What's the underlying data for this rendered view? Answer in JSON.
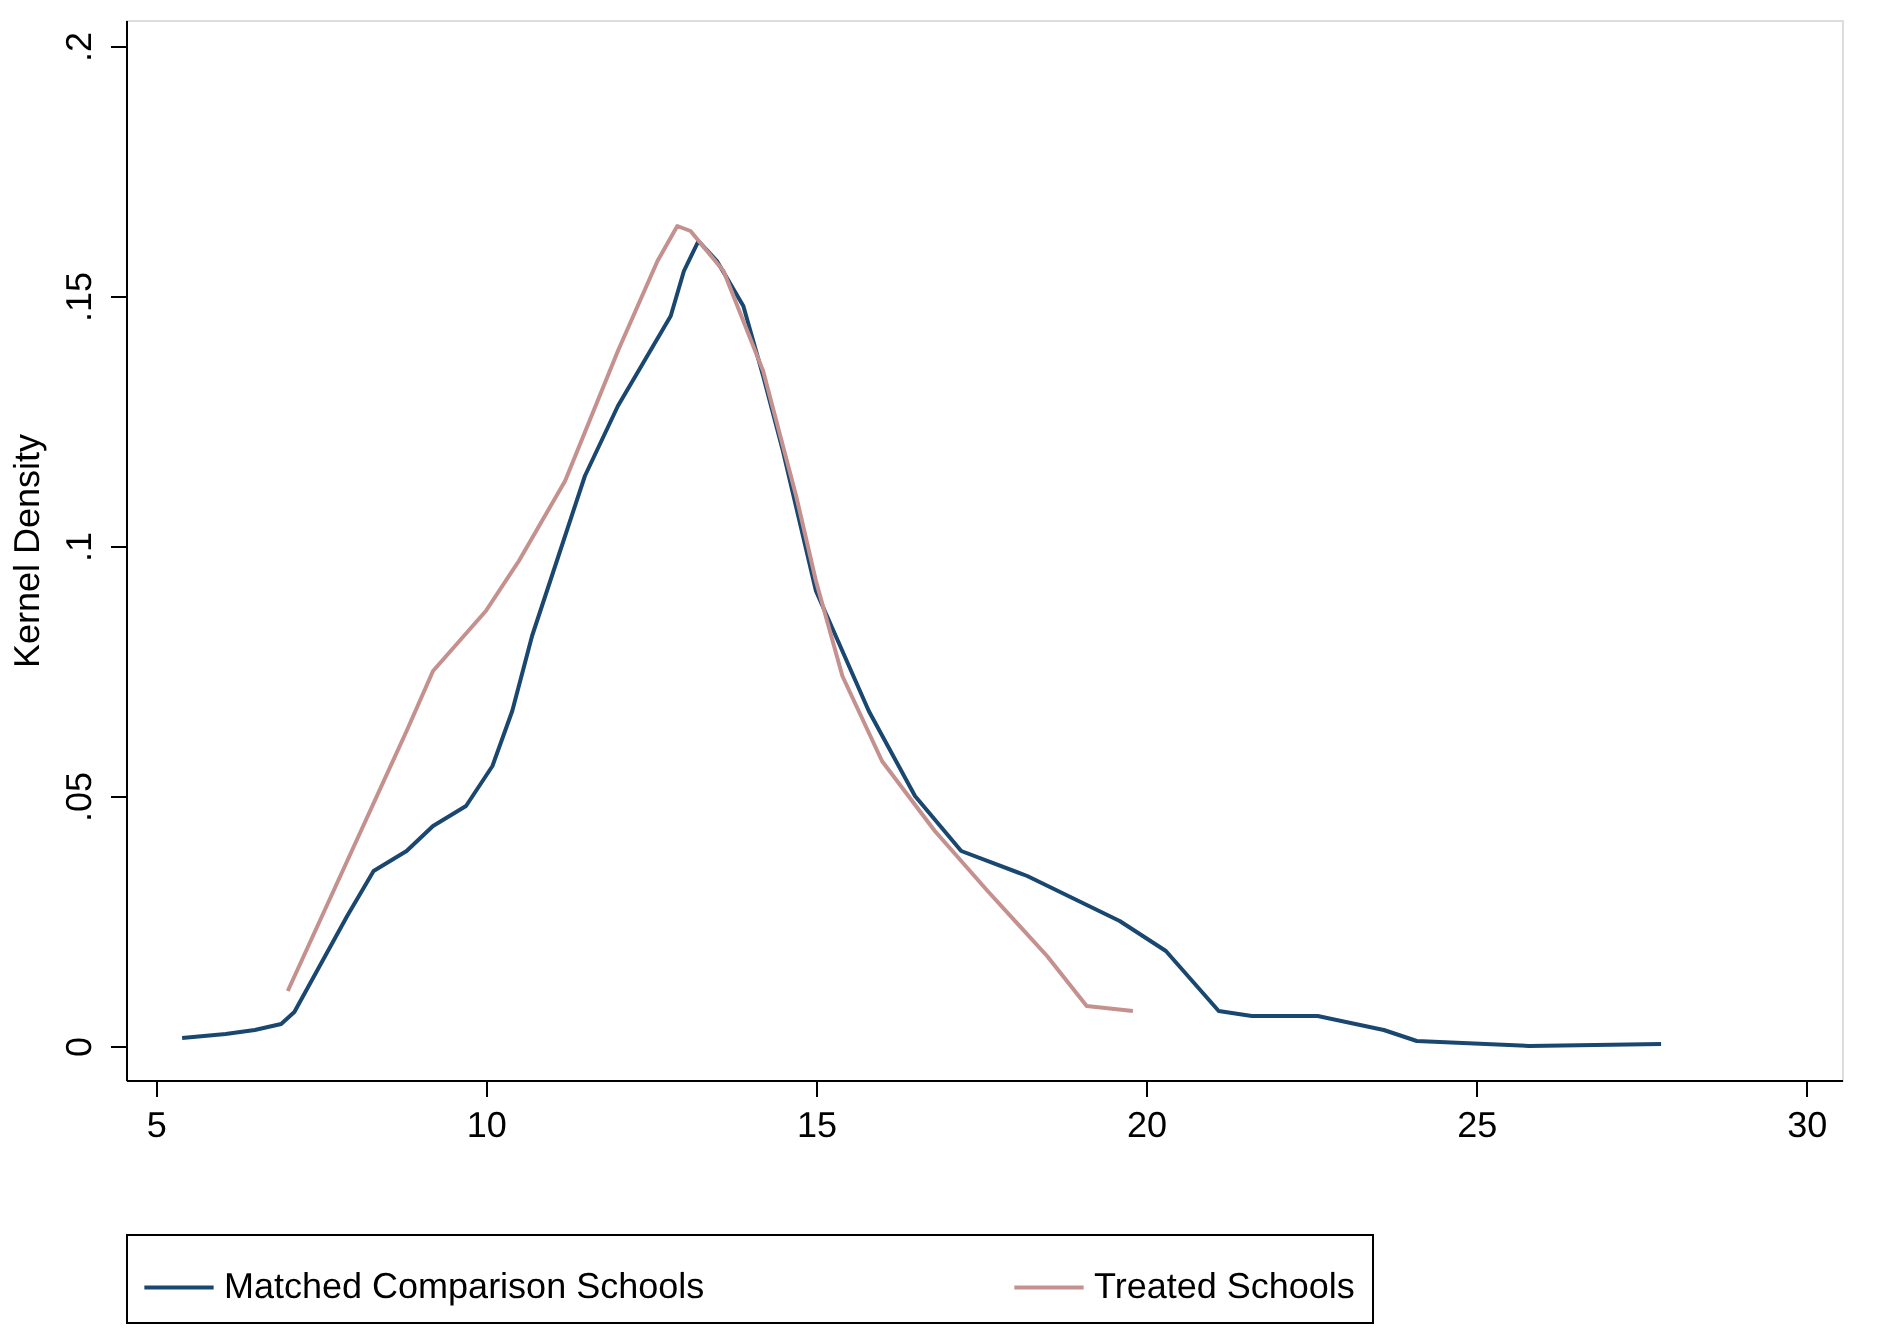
{
  "chart_data": {
    "type": "line",
    "ylabel": "Kernel Density",
    "xlim": [
      4.55,
      30.54
    ],
    "xticks": [
      5,
      10,
      15,
      20,
      25,
      30
    ],
    "ylim": [
      -0.0068,
      0.2052
    ],
    "yticks": [
      {
        "value": 0,
        "label": "0"
      },
      {
        "value": 0.05,
        "label": ".05"
      },
      {
        "value": 0.1,
        "label": ".1"
      },
      {
        "value": 0.15,
        "label": ".15"
      },
      {
        "value": 0.2,
        "label": ".2"
      }
    ],
    "grid": false,
    "legend": "bottom",
    "marker": "none",
    "line_style": "solid",
    "series": [
      {
        "name": "Matched Comparison Schools",
        "color": "#1a476f",
        "x": [
          5.4,
          6.06,
          6.5,
          6.9,
          7.1,
          7.4,
          7.9,
          8.3,
          8.8,
          9.2,
          9.7,
          9.9,
          10.1,
          10.4,
          10.7,
          11.1,
          11.5,
          12.0,
          12.4,
          12.8,
          13.0,
          13.22,
          13.5,
          13.9,
          14.2,
          14.5,
          15.0,
          15.8,
          16.5,
          17.2,
          18.2,
          19.6,
          20.3,
          21.1,
          21.6,
          22.6,
          23.6,
          24.1,
          25.8,
          27.8
        ],
        "values": [
          0.0016,
          0.0024,
          0.0032,
          0.0044,
          0.0068,
          0.014,
          0.026,
          0.035,
          0.039,
          0.044,
          0.048,
          0.052,
          0.056,
          0.067,
          0.082,
          0.098,
          0.114,
          0.128,
          0.137,
          0.146,
          0.155,
          0.161,
          0.157,
          0.148,
          0.134,
          0.119,
          0.091,
          0.067,
          0.05,
          0.039,
          0.034,
          0.025,
          0.019,
          0.007,
          0.006,
          0.006,
          0.0032,
          0.001,
          0.0,
          0.0004
        ]
      },
      {
        "name": "Treated Schools",
        "color": "#c4918f",
        "x": [
          7.0,
          7.9,
          8.8,
          9.2,
          10.0,
          10.5,
          11.2,
          12.0,
          12.6,
          12.9,
          13.1,
          13.6,
          14.2,
          14.7,
          15.0,
          15.4,
          16.0,
          16.8,
          17.6,
          18.5,
          19.1,
          19.8
        ],
        "values": [
          0.011,
          0.037,
          0.063,
          0.075,
          0.087,
          0.097,
          0.113,
          0.139,
          0.157,
          0.164,
          0.163,
          0.155,
          0.135,
          0.11,
          0.093,
          0.074,
          0.057,
          0.043,
          0.031,
          0.018,
          0.008,
          0.007
        ]
      }
    ]
  }
}
